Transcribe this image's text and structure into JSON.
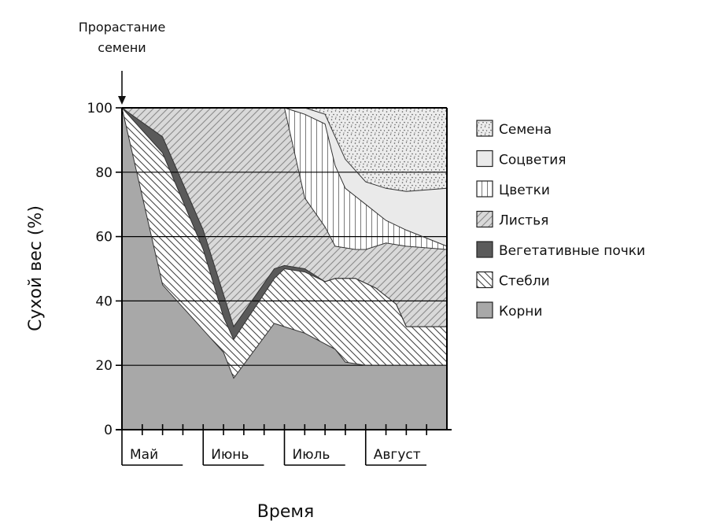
{
  "chart_data": {
    "type": "area",
    "stacked": true,
    "normalized_to_100": true,
    "xlabel": "Время",
    "ylabel": "Сухой вес (%)",
    "ylim": [
      0,
      100
    ],
    "yticks": [
      0,
      20,
      40,
      60,
      80,
      100
    ],
    "grid": true,
    "legend_position": "right",
    "months": [
      "Май",
      "Июнь",
      "Июль",
      "Август"
    ],
    "annotation": {
      "line1": "Прорастание",
      "line2": "семени"
    },
    "boundaries": [
      {
        "name": "Корни",
        "fill": "#a8a8a8",
        "pattern": "solid",
        "points": [
          [
            0,
            100
          ],
          [
            2,
            45
          ],
          [
            5,
            24
          ],
          [
            5.5,
            16
          ],
          [
            7.5,
            33
          ],
          [
            9,
            30
          ],
          [
            10.5,
            25
          ],
          [
            11,
            21
          ],
          [
            12,
            20
          ],
          [
            13,
            20
          ],
          [
            14,
            20
          ],
          [
            16,
            20
          ]
        ]
      },
      {
        "name": "Стебли",
        "fill": "#ffffff",
        "pattern": "hatch-back",
        "points": [
          [
            0,
            100
          ],
          [
            2,
            86
          ],
          [
            4,
            56
          ],
          [
            5,
            35
          ],
          [
            5.5,
            28
          ],
          [
            7.5,
            47
          ],
          [
            8,
            50
          ],
          [
            9,
            49
          ],
          [
            10,
            46
          ],
          [
            10.5,
            47
          ],
          [
            11.5,
            47
          ],
          [
            12.5,
            44
          ],
          [
            13.5,
            39
          ],
          [
            14,
            32
          ],
          [
            16,
            32
          ]
        ]
      },
      {
        "name": "Вегетативные почки",
        "fill": "#5a5a5a",
        "pattern": "solid",
        "points": [
          [
            0,
            100
          ],
          [
            2,
            91
          ],
          [
            4,
            62
          ],
          [
            5,
            42
          ],
          [
            5.5,
            32
          ],
          [
            7.5,
            50
          ],
          [
            8,
            51
          ],
          [
            9,
            50
          ],
          [
            10,
            46
          ],
          [
            10.5,
            47
          ],
          [
            11.5,
            47
          ],
          [
            12.5,
            44
          ],
          [
            13.5,
            39
          ],
          [
            14,
            32
          ],
          [
            16,
            32
          ]
        ]
      },
      {
        "name": "Листья",
        "fill": "#dcdcdc",
        "pattern": "hatch-forward",
        "points": [
          [
            0,
            100
          ],
          [
            8,
            100
          ],
          [
            8.5,
            86
          ],
          [
            9,
            72
          ],
          [
            10,
            63
          ],
          [
            10.5,
            57
          ],
          [
            11.5,
            56
          ],
          [
            12,
            56
          ],
          [
            13,
            58
          ],
          [
            14,
            57
          ],
          [
            16,
            56
          ]
        ]
      },
      {
        "name": "Цветки",
        "fill": "#ffffff",
        "pattern": "vertical",
        "points": [
          [
            0,
            100
          ],
          [
            8,
            100
          ],
          [
            8.5,
            99
          ],
          [
            9,
            98
          ],
          [
            10,
            95
          ],
          [
            10.5,
            82
          ],
          [
            11,
            75
          ],
          [
            12,
            70
          ],
          [
            13,
            65
          ],
          [
            14,
            62
          ],
          [
            16,
            57
          ]
        ]
      },
      {
        "name": "Соцветия",
        "fill": "#eaeaea",
        "pattern": "solid",
        "points": [
          [
            0,
            100
          ],
          [
            8,
            100
          ],
          [
            8.5,
            100
          ],
          [
            9,
            100
          ],
          [
            10,
            98
          ],
          [
            10.5,
            91
          ],
          [
            11,
            84
          ],
          [
            12,
            77
          ],
          [
            13,
            75
          ],
          [
            14,
            74
          ],
          [
            16,
            75
          ]
        ]
      },
      {
        "name": "Семена",
        "fill": "#eeeeee",
        "pattern": "dots",
        "points": [
          [
            0,
            100
          ],
          [
            16,
            100
          ]
        ]
      }
    ],
    "legend_order": [
      "Семена",
      "Соцветия",
      "Цветки",
      "Листья",
      "Вегетативные почки",
      "Стебли",
      "Корни"
    ]
  }
}
